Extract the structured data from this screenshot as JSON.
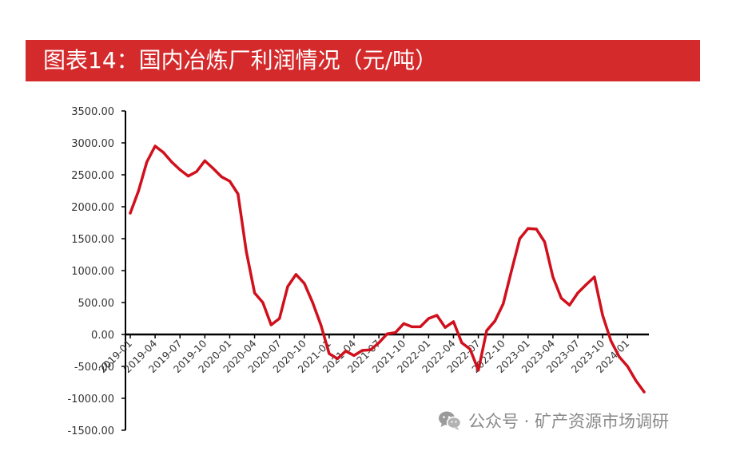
{
  "header": {
    "title": "图表14：国内冶炼厂利润情况（元/吨）"
  },
  "watermark": {
    "text": "公众号 · 矿产资源市场调研",
    "icon": "wechat-icon"
  },
  "colors": {
    "title_bar": "#d42a2b",
    "series_line": "#d0101c",
    "axis": "#000000"
  },
  "chart_data": {
    "type": "line",
    "title": "",
    "xlabel": "",
    "ylabel": "",
    "ylim": [
      -1500,
      3500
    ],
    "y_ticks": [
      {
        "value": 3500,
        "label": "3500.00"
      },
      {
        "value": 3000,
        "label": "3000.00"
      },
      {
        "value": 2500,
        "label": "2500.00"
      },
      {
        "value": 2000,
        "label": "2000.00"
      },
      {
        "value": 1500,
        "label": "1500.00"
      },
      {
        "value": 1000,
        "label": "1000.00"
      },
      {
        "value": 500,
        "label": "500.00"
      },
      {
        "value": 0,
        "label": "0.00"
      },
      {
        "value": -500,
        "label": "-500.00"
      },
      {
        "value": -1000,
        "label": "-1000.00"
      },
      {
        "value": -1500,
        "label": "-1500.00"
      }
    ],
    "x_ticks": [
      "2019-01",
      "2019-04",
      "2019-07",
      "2019-10",
      "2020-01",
      "2020-04",
      "2020-07",
      "2020-10",
      "2021-01",
      "2021-04",
      "2021-07",
      "2021-10",
      "2022-01",
      "2022-04",
      "2022-07",
      "2022-10",
      "2023-01",
      "2023-04",
      "2023-07",
      "2023-10",
      "2024-01"
    ],
    "grid": false,
    "legend": "none",
    "series": [
      {
        "x": [
          "2019-01",
          "2019-02",
          "2019-03",
          "2019-04",
          "2019-05",
          "2019-06",
          "2019-07",
          "2019-08",
          "2019-09",
          "2019-10",
          "2019-11",
          "2019-12",
          "2020-01",
          "2020-02",
          "2020-03",
          "2020-04",
          "2020-05",
          "2020-06",
          "2020-07",
          "2020-08",
          "2020-09",
          "2020-10",
          "2020-11",
          "2020-12",
          "2021-01",
          "2021-02",
          "2021-03",
          "2021-04",
          "2021-05",
          "2021-06",
          "2021-07",
          "2021-08",
          "2021-09",
          "2021-10",
          "2021-11",
          "2021-12",
          "2022-01",
          "2022-02",
          "2022-03",
          "2022-04",
          "2022-05",
          "2022-06",
          "2022-07",
          "2022-08",
          "2022-09",
          "2022-10",
          "2022-11",
          "2022-12",
          "2023-01",
          "2023-02",
          "2023-03",
          "2023-04",
          "2023-05",
          "2023-06",
          "2023-07",
          "2023-08",
          "2023-09",
          "2023-10",
          "2023-11",
          "2023-12",
          "2024-01",
          "2024-02",
          "2024-03"
        ],
        "values": [
          1900,
          2250,
          2700,
          2950,
          2850,
          2700,
          2580,
          2480,
          2550,
          2720,
          2600,
          2470,
          2400,
          2200,
          1300,
          650,
          500,
          150,
          250,
          750,
          940,
          800,
          500,
          150,
          -300,
          -380,
          -260,
          -330,
          -250,
          -240,
          -130,
          10,
          30,
          170,
          120,
          120,
          250,
          300,
          110,
          200,
          -130,
          -230,
          -560,
          60,
          210,
          480,
          1000,
          1500,
          1660,
          1650,
          1450,
          900,
          570,
          460,
          650,
          780,
          900,
          300,
          -100,
          -350,
          -500,
          -720,
          -900
        ]
      }
    ]
  }
}
